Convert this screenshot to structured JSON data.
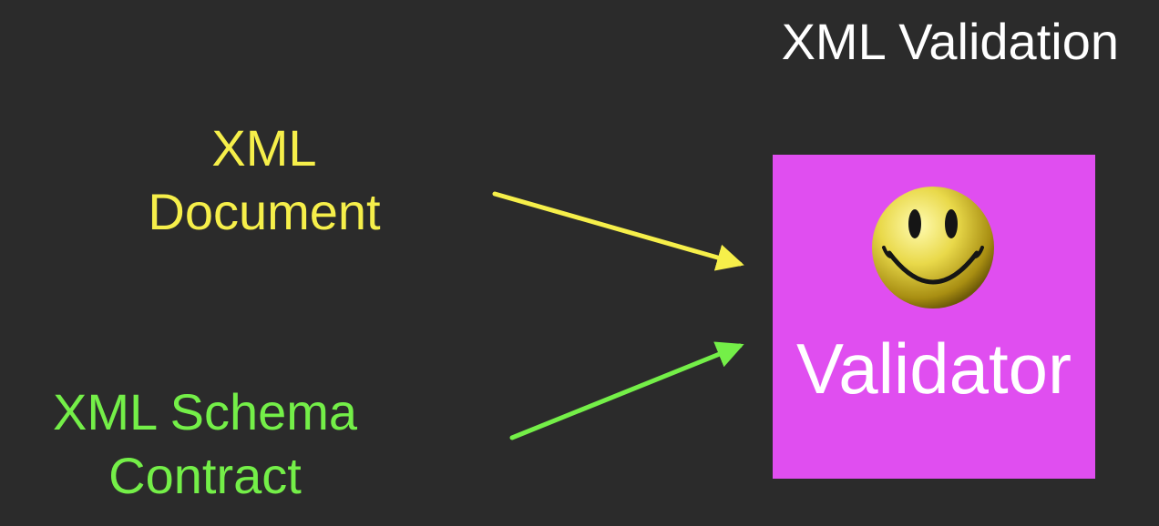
{
  "title": "XML Validation",
  "inputs": {
    "document": {
      "line1": "XML",
      "line2": "Document",
      "color": "#f6ef4a"
    },
    "schema": {
      "line1": "XML Schema",
      "line2": "Contract",
      "color": "#74ef48"
    }
  },
  "validator": {
    "label": "Validator",
    "box_color": "#e04ef0",
    "icon": "smiley-face-icon"
  },
  "background_color": "#2b2b2b"
}
